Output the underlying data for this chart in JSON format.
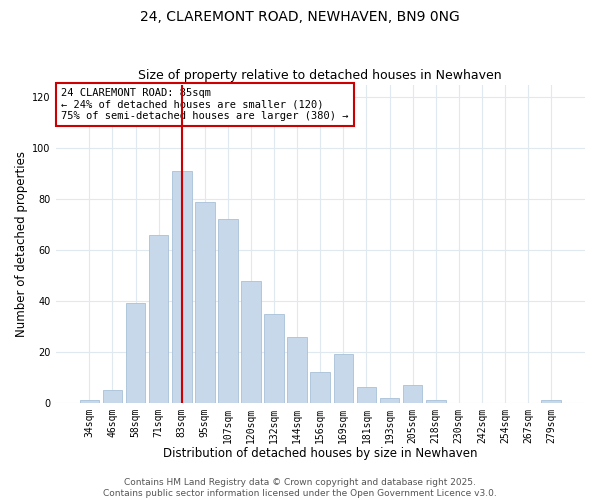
{
  "title": "24, CLAREMONT ROAD, NEWHAVEN, BN9 0NG",
  "subtitle": "Size of property relative to detached houses in Newhaven",
  "xlabel": "Distribution of detached houses by size in Newhaven",
  "ylabel": "Number of detached properties",
  "bar_labels": [
    "34sqm",
    "46sqm",
    "58sqm",
    "71sqm",
    "83sqm",
    "95sqm",
    "107sqm",
    "120sqm",
    "132sqm",
    "144sqm",
    "156sqm",
    "169sqm",
    "181sqm",
    "193sqm",
    "205sqm",
    "218sqm",
    "230sqm",
    "242sqm",
    "254sqm",
    "267sqm",
    "279sqm"
  ],
  "bar_values": [
    1,
    5,
    39,
    66,
    91,
    79,
    72,
    48,
    35,
    26,
    12,
    19,
    6,
    2,
    7,
    1,
    0,
    0,
    0,
    0,
    1
  ],
  "bar_color": "#c8d8eb",
  "bar_edge_color": "#a8c0d8",
  "vline_x_index": 4,
  "vline_color": "#cc0000",
  "ylim": [
    0,
    125
  ],
  "yticks": [
    0,
    20,
    40,
    60,
    80,
    100,
    120
  ],
  "annotation_title": "24 CLAREMONT ROAD: 85sqm",
  "annotation_line1": "← 24% of detached houses are smaller (120)",
  "annotation_line2": "75% of semi-detached houses are larger (380) →",
  "footer1": "Contains HM Land Registry data © Crown copyright and database right 2025.",
  "footer2": "Contains public sector information licensed under the Open Government Licence v3.0.",
  "background_color": "#ffffff",
  "plot_bg_color": "#ffffff",
  "grid_color": "#e0e8f0",
  "title_fontsize": 10,
  "subtitle_fontsize": 9,
  "axis_label_fontsize": 8.5,
  "tick_fontsize": 7,
  "footer_fontsize": 6.5
}
